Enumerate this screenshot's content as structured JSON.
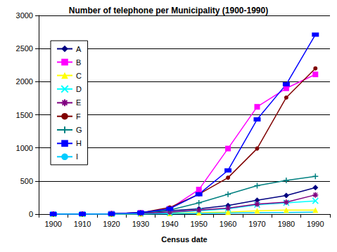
{
  "chart_data": {
    "type": "line",
    "title": "Number of telephone per Municipality (1900-1990)",
    "x_label": "Census date",
    "categories": [
      "1900",
      "1910",
      "1920",
      "1930",
      "1940",
      "1950",
      "1960",
      "1970",
      "1980",
      "1990"
    ],
    "series": [
      {
        "name": "A",
        "color": "#000080",
        "marker": "diamond",
        "values": [
          0,
          0,
          5,
          20,
          50,
          80,
          130,
          210,
          280,
          400
        ]
      },
      {
        "name": "B",
        "color": "#FF00FF",
        "marker": "square",
        "values": [
          0,
          0,
          5,
          20,
          80,
          370,
          990,
          1620,
          1900,
          2110
        ]
      },
      {
        "name": "C",
        "color": "#FFFF00",
        "marker": "triangle",
        "values": [
          0,
          0,
          0,
          5,
          10,
          20,
          30,
          50,
          60,
          60
        ]
      },
      {
        "name": "D",
        "color": "#00FFFF",
        "marker": "x",
        "values": [
          0,
          0,
          2,
          10,
          20,
          50,
          80,
          140,
          170,
          200
        ]
      },
      {
        "name": "E",
        "color": "#800080",
        "marker": "star",
        "values": [
          0,
          0,
          2,
          10,
          30,
          60,
          90,
          150,
          180,
          290
        ]
      },
      {
        "name": "F",
        "color": "#800000",
        "marker": "circle",
        "values": [
          0,
          0,
          5,
          20,
          100,
          300,
          550,
          990,
          1760,
          2200
        ]
      },
      {
        "name": "G",
        "color": "#008080",
        "marker": "plus",
        "values": [
          0,
          0,
          5,
          20,
          60,
          170,
          300,
          430,
          510,
          570
        ]
      },
      {
        "name": "H",
        "color": "#0000FF",
        "marker": "dash",
        "values": [
          0,
          0,
          5,
          20,
          80,
          300,
          660,
          1430,
          1960,
          2710
        ]
      },
      {
        "name": "I",
        "color": "#00CCFF",
        "marker": "none",
        "values": [
          0,
          0,
          0,
          2,
          5,
          10,
          15,
          20,
          25,
          30
        ]
      }
    ],
    "ylim": [
      0,
      3000
    ],
    "yticks": [
      0,
      500,
      1000,
      1500,
      2000,
      2500,
      3000
    ],
    "grid": true,
    "legend": "top-left"
  }
}
